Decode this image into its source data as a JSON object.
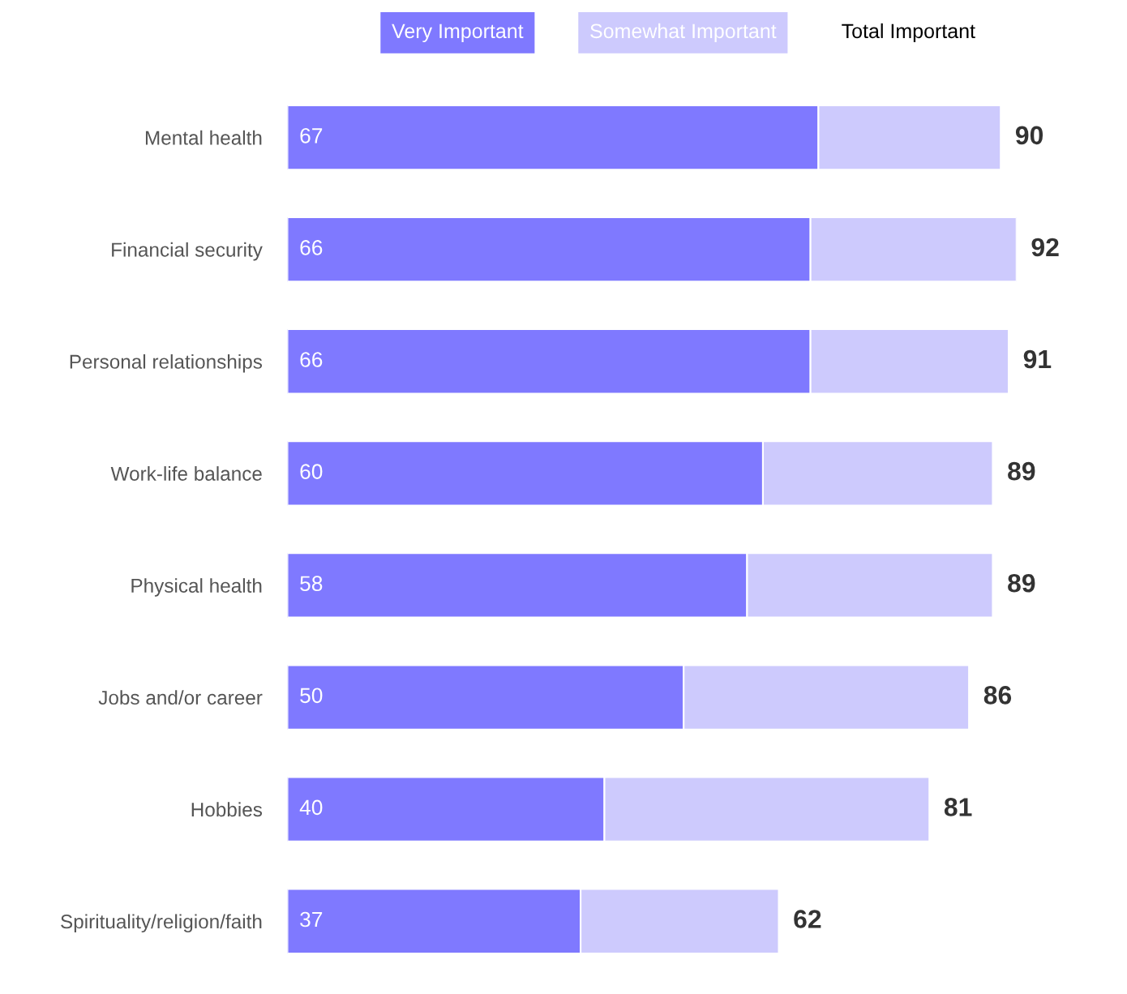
{
  "chart_data": {
    "type": "bar",
    "orientation": "horizontal",
    "stacked": true,
    "categories": [
      "Mental health",
      "Financial security",
      "Personal relationships",
      "Work-life balance",
      "Physical health",
      "Jobs and/or career",
      "Hobbies",
      "Spirituality/religion/faith"
    ],
    "series": [
      {
        "name": "Very Important",
        "color": "#7f79ff",
        "values": [
          67,
          66,
          66,
          60,
          58,
          50,
          40,
          37
        ],
        "value_labels": [
          "67",
          "66",
          "66",
          "60",
          "58",
          "50",
          "40",
          "37"
        ]
      },
      {
        "name": "Somewhat Important",
        "color": "#cdcafd",
        "values": [
          23,
          26,
          25,
          29,
          31,
          36,
          41,
          25
        ]
      }
    ],
    "totals": [
      "90",
      "92",
      "91",
      "89",
      "89",
      "86",
      "81",
      "62"
    ],
    "legend_title": "Total Important",
    "legend": "top",
    "tick_labels": "y",
    "grid": false
  }
}
